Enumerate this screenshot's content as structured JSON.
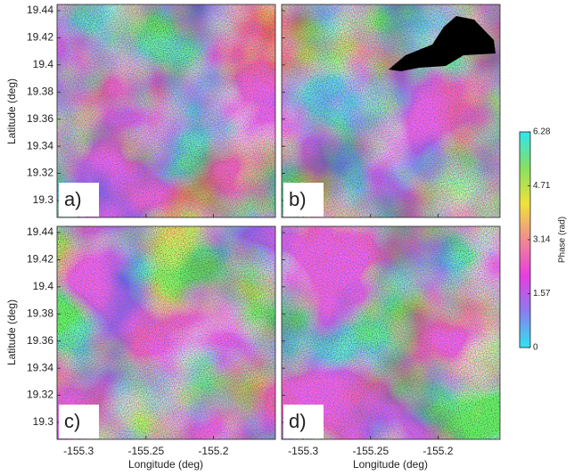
{
  "chart_data": {
    "type": "interferogram-grid",
    "panels": [
      "a)",
      "b)",
      "c)",
      "d)"
    ],
    "xlabel": "Longitude (deg)",
    "ylabel": "Latitude (deg)",
    "xlim": [
      -155.316,
      -155.154
    ],
    "xticks": [
      -155.3,
      -155.25,
      -155.2
    ],
    "ylim": [
      19.2875,
      19.4446
    ],
    "yticks": [
      19.3,
      19.32,
      19.34,
      19.36,
      19.38,
      19.4,
      19.42,
      19.44
    ],
    "colorbar": {
      "label": "Phase (rad)",
      "lim": [
        0,
        6.28
      ],
      "ticks": [
        0,
        1.57,
        3.14,
        4.71,
        6.28
      ],
      "colors": [
        "#2ee6f0",
        "#8a7cf0",
        "#e83ce0",
        "#f08a90",
        "#f0e23a",
        "#86e060",
        "#2ee6f0"
      ]
    }
  }
}
